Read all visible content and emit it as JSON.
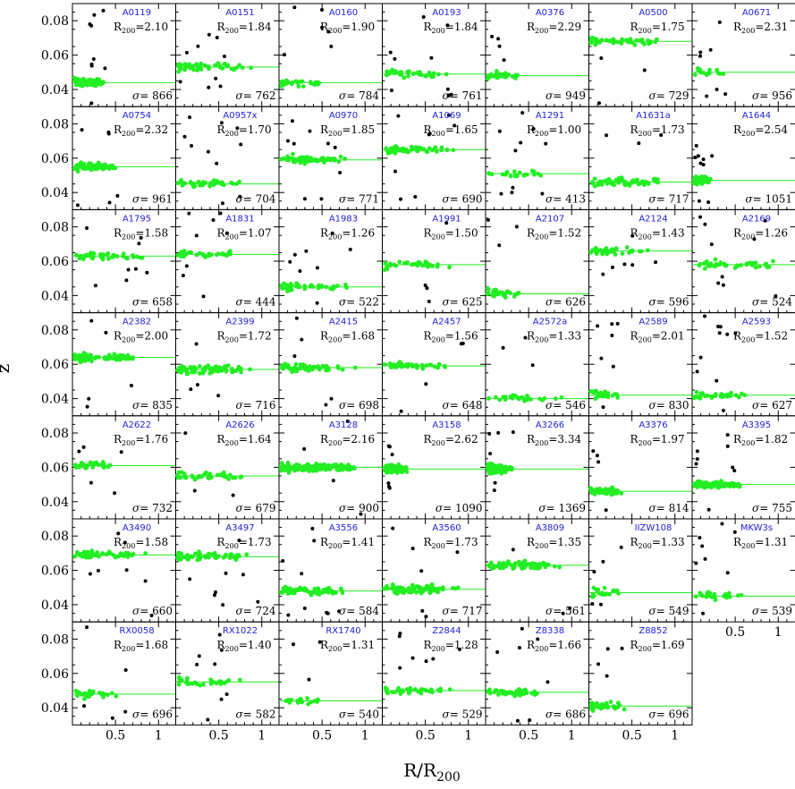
{
  "chart_data": {
    "type": "scatter",
    "xlabel": "R/R200",
    "ylabel": "z",
    "xlim": [
      0,
      1.2
    ],
    "ylim": [
      0.03,
      0.09
    ],
    "x_ticks": [
      "0.5",
      "1"
    ],
    "y_ticks": [
      "0.04",
      "0.06",
      "0.08"
    ],
    "colors": {
      "member": "#22ee22",
      "interloper": "#000000",
      "cluster_name": "#2222dd",
      "mean_line": "#22ee22"
    },
    "panels": [
      {
        "name": "A0119",
        "r200": "2.10",
        "sigma": "866",
        "z_mean": 0.044,
        "n_members": 70,
        "spread": 0.4
      },
      {
        "name": "A0151",
        "r200": "1.84",
        "sigma": "762",
        "z_mean": 0.053,
        "n_members": 45,
        "spread": 0.9
      },
      {
        "name": "A0160",
        "r200": "1.90",
        "sigma": "784",
        "z_mean": 0.044,
        "n_members": 28,
        "spread": 0.6
      },
      {
        "name": "A0193",
        "r200": "1.84",
        "sigma": "761",
        "z_mean": 0.049,
        "n_members": 35,
        "spread": 0.8
      },
      {
        "name": "A0376",
        "r200": "2.29",
        "sigma": "949",
        "z_mean": 0.048,
        "n_members": 30,
        "spread": 0.4
      },
      {
        "name": "A0500",
        "r200": "1.75",
        "sigma": "729",
        "z_mean": 0.068,
        "n_members": 55,
        "spread": 0.85
      },
      {
        "name": "A0671",
        "r200": "2.31",
        "sigma": "956",
        "z_mean": 0.05,
        "n_members": 15,
        "spread": 0.4
      },
      {
        "name": "A0754",
        "r200": "2.32",
        "sigma": "961",
        "z_mean": 0.055,
        "n_members": 80,
        "spread": 0.5
      },
      {
        "name": "A0957x",
        "r200": "1.70",
        "sigma": "704",
        "z_mean": 0.045,
        "n_members": 40,
        "spread": 0.8
      },
      {
        "name": "A0970",
        "r200": "1.85",
        "sigma": "771",
        "z_mean": 0.059,
        "n_members": 65,
        "spread": 0.8
      },
      {
        "name": "A1069",
        "r200": "1.65",
        "sigma": "690",
        "z_mean": 0.065,
        "n_members": 50,
        "spread": 0.9
      },
      {
        "name": "A1291",
        "r200": "1.00",
        "sigma": "413",
        "z_mean": 0.051,
        "n_members": 20,
        "spread": 0.7
      },
      {
        "name": "A1631a",
        "r200": "1.73",
        "sigma": "717",
        "z_mean": 0.046,
        "n_members": 65,
        "spread": 0.95
      },
      {
        "name": "A1644",
        "r200": "2.54",
        "sigma": "1051",
        "z_mean": 0.047,
        "n_members": 80,
        "spread": 0.2
      },
      {
        "name": "A1795",
        "r200": "1.58",
        "sigma": "658",
        "z_mean": 0.063,
        "n_members": 40,
        "spread": 0.9
      },
      {
        "name": "A1831",
        "r200": "1.07",
        "sigma": "444",
        "z_mean": 0.064,
        "n_members": 30,
        "spread": 0.9
      },
      {
        "name": "A1983",
        "r200": "1.26",
        "sigma": "522",
        "z_mean": 0.045,
        "n_members": 40,
        "spread": 0.8
      },
      {
        "name": "A1991",
        "r200": "1.50",
        "sigma": "625",
        "z_mean": 0.058,
        "n_members": 35,
        "spread": 0.8
      },
      {
        "name": "A2107",
        "r200": "1.52",
        "sigma": "626",
        "z_mean": 0.041,
        "n_members": 30,
        "spread": 0.5
      },
      {
        "name": "A2124",
        "r200": "1.43",
        "sigma": "596",
        "z_mean": 0.066,
        "n_members": 35,
        "spread": 0.8
      },
      {
        "name": "A2169",
        "r200": "1.26",
        "sigma": "524",
        "z_mean": 0.058,
        "n_members": 40,
        "spread": 0.95
      },
      {
        "name": "A2382",
        "r200": "2.00",
        "sigma": "835",
        "z_mean": 0.064,
        "n_members": 80,
        "spread": 0.75
      },
      {
        "name": "A2399",
        "r200": "1.72",
        "sigma": "716",
        "z_mean": 0.057,
        "n_members": 70,
        "spread": 0.95
      },
      {
        "name": "A2415",
        "r200": "1.68",
        "sigma": "698",
        "z_mean": 0.058,
        "n_members": 60,
        "spread": 0.9
      },
      {
        "name": "A2457",
        "r200": "1.56",
        "sigma": "648",
        "z_mean": 0.059,
        "n_members": 40,
        "spread": 0.95
      },
      {
        "name": "A2572a",
        "r200": "1.33",
        "sigma": "546",
        "z_mean": 0.04,
        "n_members": 25,
        "spread": 0.9
      },
      {
        "name": "A2589",
        "r200": "2.01",
        "sigma": "830",
        "z_mean": 0.042,
        "n_members": 25,
        "spread": 0.35
      },
      {
        "name": "A2593",
        "r200": "1.52",
        "sigma": "627",
        "z_mean": 0.042,
        "n_members": 30,
        "spread": 0.65
      },
      {
        "name": "A2622",
        "r200": "1.76",
        "sigma": "732",
        "z_mean": 0.061,
        "n_members": 30,
        "spread": 0.55
      },
      {
        "name": "A2626",
        "r200": "1.64",
        "sigma": "679",
        "z_mean": 0.055,
        "n_members": 40,
        "spread": 0.8
      },
      {
        "name": "A3128",
        "r200": "2.16",
        "sigma": "900",
        "z_mean": 0.06,
        "n_members": 140,
        "spread": 0.95
      },
      {
        "name": "A3158",
        "r200": "2.62",
        "sigma": "1090",
        "z_mean": 0.059,
        "n_members": 120,
        "spread": 0.3
      },
      {
        "name": "A3266",
        "r200": "3.34",
        "sigma": "1369",
        "z_mean": 0.059,
        "n_members": 150,
        "spread": 0.3
      },
      {
        "name": "A3376",
        "r200": "1.97",
        "sigma": "814",
        "z_mean": 0.046,
        "n_members": 50,
        "spread": 0.4
      },
      {
        "name": "A3395",
        "r200": "1.82",
        "sigma": "755",
        "z_mean": 0.05,
        "n_members": 80,
        "spread": 0.6
      },
      {
        "name": "A3490",
        "r200": "1.58",
        "sigma": "660",
        "z_mean": 0.069,
        "n_members": 60,
        "spread": 0.9
      },
      {
        "name": "A3497",
        "r200": "1.73",
        "sigma": "724",
        "z_mean": 0.068,
        "n_members": 60,
        "spread": 0.95
      },
      {
        "name": "A3556",
        "r200": "1.41",
        "sigma": "584",
        "z_mean": 0.048,
        "n_members": 70,
        "spread": 0.8
      },
      {
        "name": "A3560",
        "r200": "1.73",
        "sigma": "717",
        "z_mean": 0.049,
        "n_members": 80,
        "spread": 0.9
      },
      {
        "name": "A3809",
        "r200": "1.35",
        "sigma": "561",
        "z_mean": 0.063,
        "n_members": 70,
        "spread": 0.95
      },
      {
        "name": "IIZW108",
        "r200": "1.33",
        "sigma": "549",
        "z_mean": 0.047,
        "n_members": 20,
        "spread": 0.4
      },
      {
        "name": "MKW3s",
        "r200": "1.31",
        "sigma": "539",
        "z_mean": 0.045,
        "n_members": 25,
        "spread": 0.6
      },
      {
        "name": "RX0058",
        "r200": "1.68",
        "sigma": "696",
        "z_mean": 0.048,
        "n_members": 25,
        "spread": 0.6
      },
      {
        "name": "RX1022",
        "r200": "1.40",
        "sigma": "582",
        "z_mean": 0.055,
        "n_members": 30,
        "spread": 0.85
      },
      {
        "name": "RX1740",
        "r200": "1.31",
        "sigma": "540",
        "z_mean": 0.044,
        "n_members": 20,
        "spread": 0.6
      },
      {
        "name": "Z2844",
        "r200": "1.28",
        "sigma": "529",
        "z_mean": 0.05,
        "n_members": 35,
        "spread": 0.9
      },
      {
        "name": "Z8338",
        "r200": "1.66",
        "sigma": "686",
        "z_mean": 0.049,
        "n_members": 45,
        "spread": 0.7
      },
      {
        "name": "Z8852",
        "r200": "1.69",
        "sigma": "696",
        "z_mean": 0.041,
        "n_members": 35,
        "spread": 0.45
      }
    ]
  }
}
